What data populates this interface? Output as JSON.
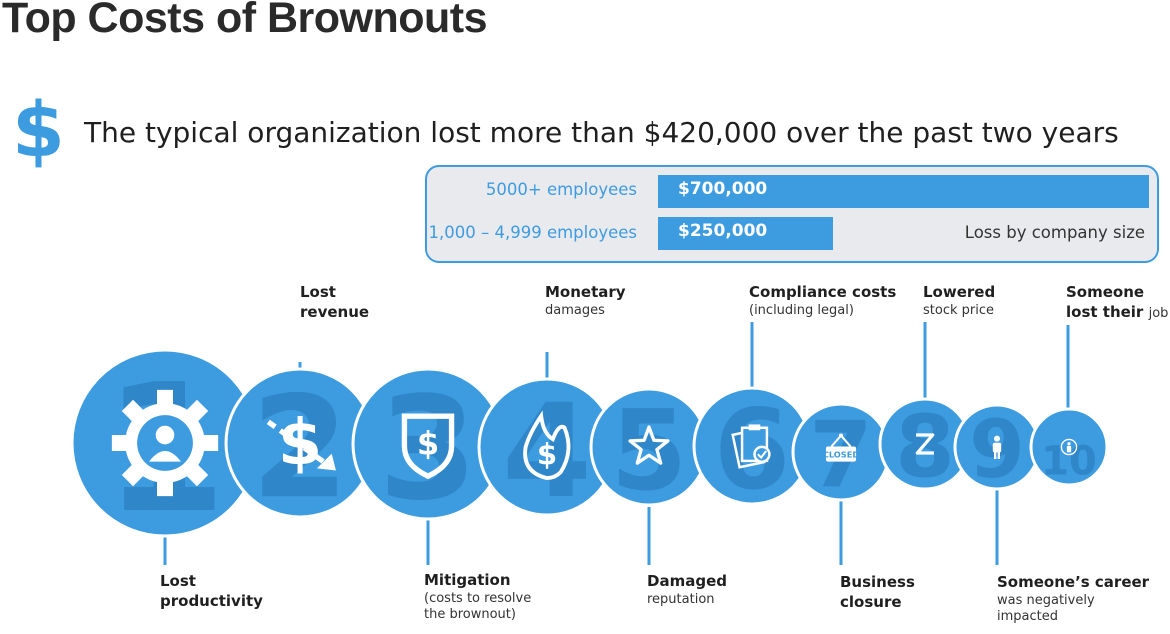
{
  "title": "Top Costs of Brownouts",
  "headline": {
    "icon": "dollar-icon",
    "text": "The typical organization lost more than $420,000 over the past two years"
  },
  "chart_data": {
    "type": "bar",
    "orientation": "horizontal",
    "categories": [
      "5000+ employees",
      "1,000 – 4,999 employees"
    ],
    "values": [
      700000,
      250000
    ],
    "value_labels": [
      "$700,000",
      "$250,000"
    ],
    "note": "Loss by company size",
    "color": "#3d9be0",
    "xlim": [
      0,
      700000
    ]
  },
  "costs": [
    {
      "rank": "1",
      "label": "Lost",
      "label2": "productivity",
      "sub": "",
      "icon": "gear-person-icon"
    },
    {
      "rank": "2",
      "label": "Lost",
      "label2": "revenue",
      "sub": "",
      "icon": "dollar-down-icon"
    },
    {
      "rank": "3",
      "label": "Mitigation",
      "label2": "",
      "sub": "(costs to resolve",
      "sub2": "the brownout)",
      "icon": "dollar-shield-icon"
    },
    {
      "rank": "4",
      "label": "Monetary",
      "label2": "",
      "sub": "damages",
      "icon": "dollar-flame-icon"
    },
    {
      "rank": "5",
      "label": "Damaged",
      "label2": "",
      "sub": "reputation",
      "icon": "star-icon"
    },
    {
      "rank": "6",
      "label": "Compliance costs",
      "label2": "",
      "sub": "(including legal)",
      "icon": "documents-check-icon"
    },
    {
      "rank": "7",
      "label": "Business",
      "label2": "closure",
      "sub": "",
      "icon": "closed-sign-icon",
      "sign_text": "CLOSED"
    },
    {
      "rank": "8",
      "label": "Lowered",
      "label2": "",
      "sub": "stock price",
      "icon": "stock-down-icon"
    },
    {
      "rank": "9",
      "label": "Someone’s career",
      "label2": "",
      "sub": "was negatively",
      "sub2": "impacted",
      "icon": "person-icon"
    },
    {
      "rank": "10",
      "label": "Someone",
      "label2": "lost their",
      "inline_sub": "job",
      "sub": "",
      "icon": "person-circle-icon"
    }
  ],
  "colors": {
    "accent": "#3d9be0",
    "number": "#2f86c9",
    "panel_bg": "#e9eaee"
  }
}
